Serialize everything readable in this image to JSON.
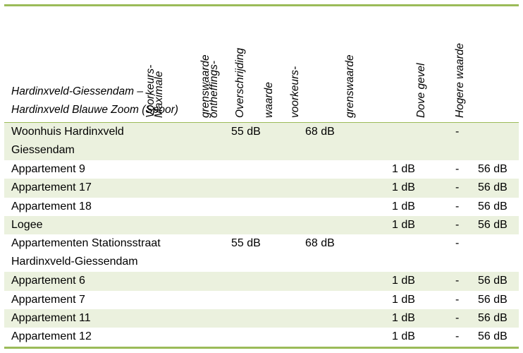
{
  "header": {
    "location_line1": "Hardinxveld-Giessendam –",
    "location_line2": "Hardinxveld Blauwe Zoom (Spoor)",
    "col1": [
      "Voorkeurs-",
      "grenswaarde"
    ],
    "col2": [
      "Maximale",
      "ontheffings-",
      "waarde"
    ],
    "col3": [
      "Overschrijding",
      "voorkeurs-",
      "grenswaarde"
    ],
    "col4": [
      "Dove gevel"
    ],
    "col5": [
      "Hogere waarde"
    ]
  },
  "rows": [
    {
      "name": [
        "Woonhuis Hardinxveld",
        "Giessendam"
      ],
      "v1": "55 dB",
      "v2": "68 dB",
      "v3": "",
      "v4": "-",
      "v5": "",
      "shade": true
    },
    {
      "name": [
        "Appartement 9"
      ],
      "v1": "",
      "v2": "",
      "v3": "1 dB",
      "v4": "-",
      "v5": "56 dB",
      "shade": false
    },
    {
      "name": [
        "Appartement 17"
      ],
      "v1": "",
      "v2": "",
      "v3": "1 dB",
      "v4": "-",
      "v5": "56 dB",
      "shade": true
    },
    {
      "name": [
        "Appartement 18"
      ],
      "v1": "",
      "v2": "",
      "v3": "1 dB",
      "v4": "-",
      "v5": "56 dB",
      "shade": false
    },
    {
      "name": [
        "Logee"
      ],
      "v1": "",
      "v2": "",
      "v3": "1 dB",
      "v4": "-",
      "v5": "56 dB",
      "shade": true
    },
    {
      "name": [
        "Appartementen Stationsstraat",
        "Hardinxveld-Giessendam"
      ],
      "v1": "55 dB",
      "v2": "68 dB",
      "v3": "",
      "v4": "-",
      "v5": "",
      "shade": false
    },
    {
      "name": [
        "Appartement 6"
      ],
      "v1": "",
      "v2": "",
      "v3": "1 dB",
      "v4": "-",
      "v5": "56 dB",
      "shade": true
    },
    {
      "name": [
        "Appartement 7"
      ],
      "v1": "",
      "v2": "",
      "v3": "1 dB",
      "v4": "-",
      "v5": "56 dB",
      "shade": false
    },
    {
      "name": [
        "Appartement 11"
      ],
      "v1": "",
      "v2": "",
      "v3": "1 dB",
      "v4": "-",
      "v5": "56 dB",
      "shade": true
    },
    {
      "name": [
        "Appartement 12"
      ],
      "v1": "",
      "v2": "",
      "v3": "1 dB",
      "v4": "-",
      "v5": "56 dB",
      "shade": false
    }
  ]
}
